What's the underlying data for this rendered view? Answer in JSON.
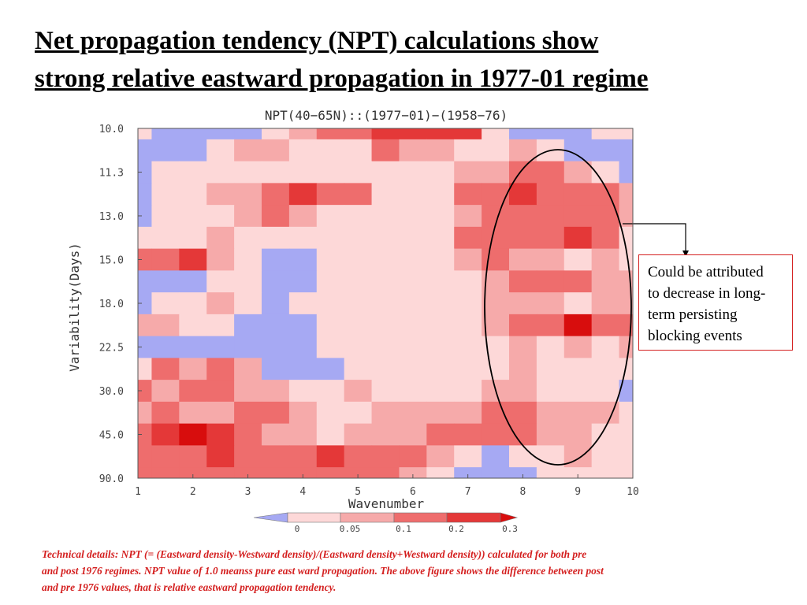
{
  "slide": {
    "title_lines": [
      "Net propagation tendency (NPT) calculations show",
      "strong relative eastward propagation in 1977-01 regime"
    ],
    "callout_lines": [
      "Could be attributed",
      "to decrease in long-",
      "term persisting",
      "blocking events"
    ],
    "technical_lines": [
      "Technical details: NPT (= (Eastward density-Westward density)/(Eastward density+Westward density)) calculated for both pre",
      "and post 1976 regimes. NPT value of 1.0 meanss pure east ward propagation. The above figure shows the difference between post",
      "and pre 1976 values, that is relative eastward propagation tendency."
    ]
  },
  "colors": {
    "negative": "#a6a9f3",
    "level_0_005": "#fdd8d8",
    "level_005_01": "#f6aaaa",
    "level_01_02": "#ee6d6d",
    "level_02_03": "#e43838",
    "level_above_03": "#d80d0d",
    "callout_border": "#d42020",
    "technical_text": "#d41f1f"
  },
  "chart_data": {
    "type": "heatmap",
    "title": "NPT(40−65N)::(1977−01)−(1958−76)",
    "xlabel": "Wavenumber",
    "ylabel": "Variability(Days)",
    "x_ticks": [
      1,
      2,
      3,
      4,
      5,
      6,
      7,
      8,
      9,
      10
    ],
    "y_ticks": [
      "10.0",
      "11.3",
      "13.0",
      "15.0",
      "18.0",
      "22.5",
      "30.0",
      "45.0",
      "90.0"
    ],
    "y_order": "top-to-bottom",
    "colorbar": {
      "labels": [
        "0",
        "0.05",
        "0.1",
        "0.2",
        "0.3"
      ],
      "levels": [
        0,
        0.05,
        0.1,
        0.2,
        0.3
      ],
      "triangular_ends": true
    },
    "x": [
      1,
      1.5,
      2,
      2.5,
      3,
      3.5,
      4,
      4.5,
      5,
      5.5,
      6,
      6.5,
      7,
      7.5,
      8,
      8.5,
      9,
      9.5,
      10
    ],
    "y": [
      "10.0",
      "10.7",
      "11.3",
      "12.2",
      "13.0",
      "14.0",
      "15.0",
      "16.5",
      "18.0",
      "20.2",
      "22.5",
      "26.2",
      "30.0",
      "37.5",
      "45.0",
      "67.5",
      "90.0"
    ],
    "values": [
      [
        0.01,
        -0.02,
        -0.02,
        -0.02,
        -0.02,
        0.02,
        0.06,
        0.1,
        0.15,
        0.2,
        0.22,
        0.25,
        0.28,
        0.04,
        -0.02,
        -0.02,
        -0.02,
        0.02,
        0.01
      ],
      [
        -0.02,
        -0.02,
        -0.02,
        0.04,
        0.07,
        0.06,
        0.03,
        0.02,
        0.04,
        0.12,
        0.07,
        0.06,
        0.04,
        0.02,
        0.08,
        0.03,
        -0.02,
        -0.02,
        -0.02
      ],
      [
        -0.02,
        0.02,
        0.03,
        0.03,
        0.03,
        0.02,
        0.03,
        0.03,
        0.02,
        0.02,
        0.03,
        0.02,
        0.07,
        0.08,
        0.13,
        0.12,
        0.07,
        0.03,
        -0.02
      ],
      [
        -0.02,
        0.04,
        0.02,
        0.06,
        0.08,
        0.11,
        0.24,
        0.14,
        0.1,
        0.04,
        0.03,
        0.04,
        0.1,
        0.18,
        0.21,
        0.15,
        0.18,
        0.12,
        0.08
      ],
      [
        -0.02,
        0.03,
        0.02,
        0.03,
        0.07,
        0.11,
        0.06,
        0.03,
        0.04,
        0.03,
        0.04,
        0.02,
        0.08,
        0.16,
        0.12,
        0.1,
        0.13,
        0.14,
        0.06
      ],
      [
        0.01,
        0.03,
        0.03,
        0.07,
        0.04,
        0.02,
        0.03,
        0.03,
        0.02,
        0.02,
        0.02,
        0.02,
        0.1,
        0.14,
        0.12,
        0.15,
        0.28,
        0.12,
        0.04
      ],
      [
        0.14,
        0.12,
        0.25,
        0.05,
        0.02,
        -0.02,
        -0.02,
        0.04,
        0.02,
        0.03,
        0.02,
        0.02,
        0.07,
        0.1,
        0.08,
        0.06,
        0.04,
        0.06,
        0.03
      ],
      [
        -0.02,
        -0.02,
        -0.02,
        0.03,
        0.04,
        -0.02,
        -0.02,
        0.02,
        0.02,
        0.03,
        0.02,
        0.02,
        0.03,
        0.06,
        0.12,
        0.1,
        0.12,
        0.08,
        0.07
      ],
      [
        -0.02,
        0.02,
        0.03,
        0.06,
        0.02,
        -0.02,
        0.03,
        0.02,
        0.03,
        0.02,
        0.02,
        0.03,
        0.02,
        0.06,
        0.08,
        0.08,
        0.04,
        0.06,
        0.05
      ],
      [
        0.06,
        0.07,
        0.03,
        0.03,
        -0.02,
        -0.02,
        -0.02,
        0.03,
        0.02,
        0.02,
        0.02,
        0.03,
        0.02,
        0.05,
        0.12,
        0.18,
        0.3,
        0.14,
        0.1
      ],
      [
        -0.02,
        -0.02,
        -0.02,
        -0.02,
        -0.02,
        -0.02,
        -0.02,
        0.02,
        0.02,
        0.02,
        0.03,
        0.02,
        0.02,
        0.04,
        0.06,
        0.04,
        0.06,
        0.04,
        0.05
      ],
      [
        0.04,
        0.12,
        0.06,
        0.1,
        0.05,
        -0.02,
        -0.02,
        -0.02,
        0.03,
        0.02,
        0.03,
        0.03,
        0.02,
        0.03,
        0.05,
        0.03,
        0.02,
        0.04,
        0.03
      ],
      [
        0.12,
        0.08,
        0.1,
        0.14,
        0.06,
        0.06,
        0.02,
        0.03,
        0.06,
        0.03,
        0.03,
        0.04,
        0.03,
        0.05,
        0.07,
        0.04,
        0.02,
        0.02,
        -0.02
      ],
      [
        0.08,
        0.12,
        0.06,
        0.08,
        0.1,
        0.14,
        0.07,
        0.04,
        0.04,
        0.07,
        0.05,
        0.06,
        0.06,
        0.12,
        0.12,
        0.08,
        0.08,
        0.05,
        0.04
      ],
      [
        0.14,
        0.22,
        0.32,
        0.22,
        0.12,
        0.08,
        0.05,
        0.04,
        0.06,
        0.08,
        0.06,
        0.1,
        0.12,
        0.14,
        0.1,
        0.08,
        0.06,
        0.02,
        0.02
      ],
      [
        0.16,
        0.14,
        0.18,
        0.24,
        0.18,
        0.1,
        0.12,
        0.24,
        0.1,
        0.12,
        0.1,
        0.08,
        0.02,
        -0.02,
        0.02,
        0.04,
        0.06,
        0.03,
        0.02
      ],
      [
        0.1,
        0.12,
        0.14,
        0.15,
        0.13,
        0.12,
        0.14,
        0.16,
        0.14,
        0.12,
        0.06,
        0.03,
        -0.02,
        -0.02,
        -0.02,
        0.02,
        0.04,
        0.02,
        0.02
      ]
    ]
  }
}
